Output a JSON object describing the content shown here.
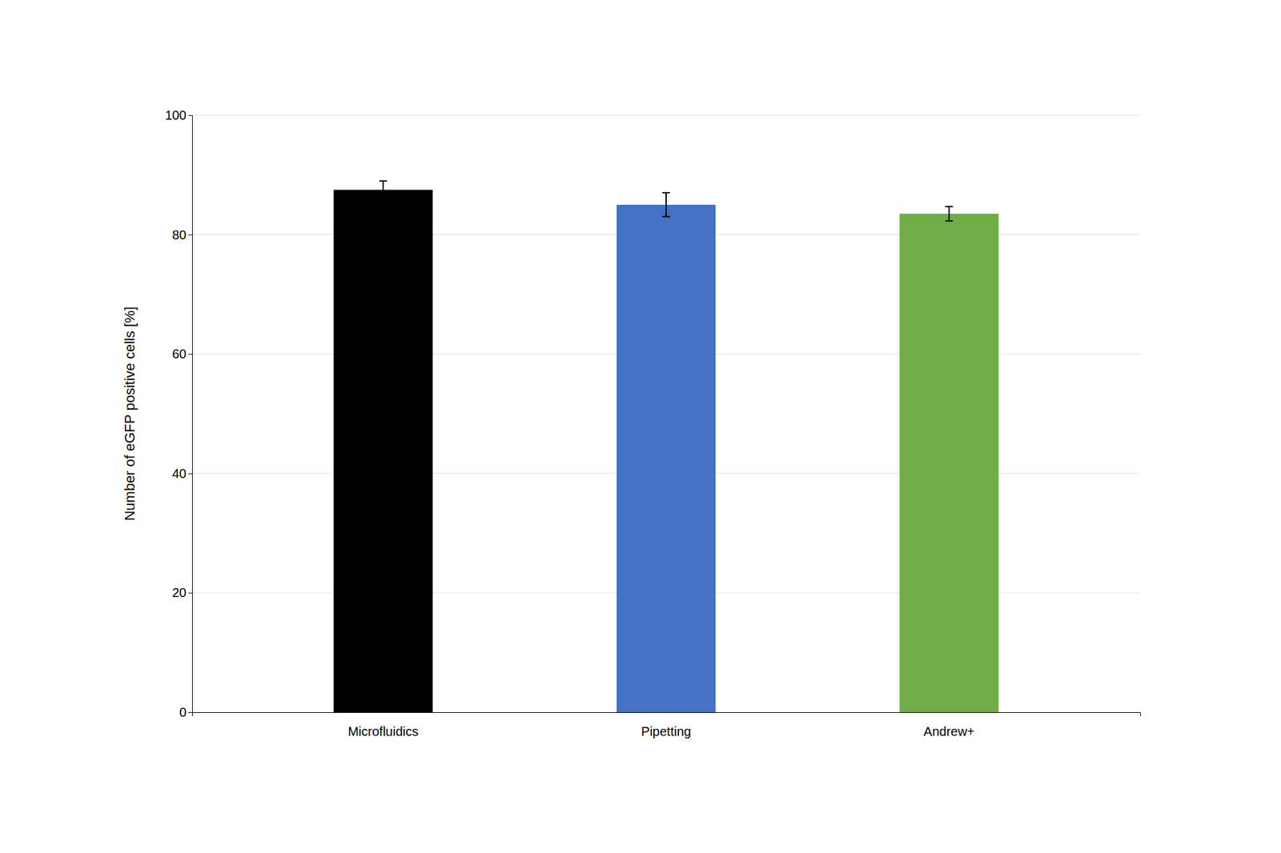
{
  "chart_data": {
    "type": "bar",
    "ylabel": "Number of eGFP positive cells [%]",
    "categories": [
      "Microfluidics",
      "Pipetting",
      "Andrew+"
    ],
    "values": [
      87.5,
      85.0,
      83.5
    ],
    "errors": [
      1.5,
      2.0,
      1.2
    ],
    "colors": [
      "#000000",
      "#4472C4",
      "#70AD47"
    ],
    "ylim": [
      0,
      100
    ],
    "yticks": [
      0,
      20,
      40,
      60,
      80,
      100
    ],
    "grid": true
  }
}
